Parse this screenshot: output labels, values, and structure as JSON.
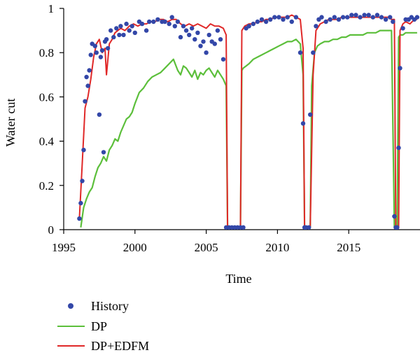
{
  "chart_data": {
    "type": "line",
    "title": "",
    "xlabel": "Time",
    "ylabel": "Water cut",
    "xlim": [
      1995,
      2020
    ],
    "ylim": [
      0,
      1
    ],
    "xticks": [
      1995,
      2000,
      2005,
      2010,
      2015
    ],
    "yticks": [
      0,
      0.2,
      0.4,
      0.6,
      0.8,
      1
    ],
    "ytick_labels": [
      "0",
      "0.2",
      "0.4",
      "0.6",
      "0.8",
      "1"
    ],
    "grid": false,
    "legend_position": "bottom-left, below plot",
    "series": [
      {
        "name": "History",
        "style": "markers",
        "color": "#3347a8",
        "x": [
          1996.1,
          1996.2,
          1996.3,
          1996.4,
          1996.5,
          1996.6,
          1996.7,
          1996.8,
          1996.9,
          1997.0,
          1997.2,
          1997.3,
          1997.5,
          1997.6,
          1997.7,
          1997.8,
          1997.9,
          1998.0,
          1998.1,
          1998.3,
          1998.5,
          1998.7,
          1998.9,
          1999.0,
          1999.2,
          1999.4,
          1999.6,
          1999.8,
          2000.0,
          2000.3,
          2000.5,
          2000.8,
          2001.0,
          2001.3,
          2001.6,
          2001.9,
          2002.1,
          2002.4,
          2002.6,
          2002.8,
          2003.0,
          2003.2,
          2003.4,
          2003.6,
          2003.8,
          2004.0,
          2004.2,
          2004.4,
          2004.6,
          2004.8,
          2005.0,
          2005.2,
          2005.4,
          2005.6,
          2005.8,
          2006.0,
          2006.2,
          2006.4,
          2006.6,
          2006.8,
          2007.0,
          2007.2,
          2007.4,
          2007.6,
          2007.8,
          2008.0,
          2008.3,
          2008.6,
          2008.9,
          2009.2,
          2009.5,
          2009.8,
          2010.1,
          2010.4,
          2010.7,
          2011.0,
          2011.3,
          2011.6,
          2011.8,
          2011.9,
          2012.0,
          2012.2,
          2012.3,
          2012.5,
          2012.7,
          2012.9,
          2013.1,
          2013.4,
          2013.7,
          2014.0,
          2014.3,
          2014.6,
          2014.9,
          2015.2,
          2015.5,
          2015.8,
          2016.1,
          2016.4,
          2016.7,
          2017.0,
          2017.3,
          2017.6,
          2017.9,
          2018.1,
          2018.2,
          2018.3,
          2018.4,
          2018.5,
          2018.6,
          2018.8,
          2019.0,
          2019.2,
          2019.4,
          2019.6,
          2019.8
        ],
        "y": [
          0.05,
          0.12,
          0.22,
          0.36,
          0.58,
          0.69,
          0.65,
          0.72,
          0.79,
          0.84,
          0.83,
          0.8,
          0.52,
          0.78,
          0.81,
          0.35,
          0.85,
          0.86,
          0.82,
          0.9,
          0.87,
          0.91,
          0.88,
          0.92,
          0.88,
          0.93,
          0.9,
          0.92,
          0.89,
          0.94,
          0.93,
          0.9,
          0.94,
          0.94,
          0.95,
          0.94,
          0.94,
          0.93,
          0.96,
          0.92,
          0.94,
          0.87,
          0.92,
          0.9,
          0.88,
          0.91,
          0.86,
          0.89,
          0.83,
          0.85,
          0.8,
          0.88,
          0.85,
          0.84,
          0.9,
          0.86,
          0.77,
          0.01,
          0.01,
          0.01,
          0.01,
          0.01,
          0.01,
          0.01,
          0.91,
          0.92,
          0.93,
          0.94,
          0.95,
          0.94,
          0.95,
          0.96,
          0.96,
          0.95,
          0.96,
          0.94,
          0.96,
          0.8,
          0.48,
          0.01,
          0.01,
          0.01,
          0.52,
          0.8,
          0.92,
          0.95,
          0.96,
          0.94,
          0.95,
          0.96,
          0.95,
          0.96,
          0.96,
          0.97,
          0.97,
          0.96,
          0.97,
          0.97,
          0.96,
          0.97,
          0.96,
          0.95,
          0.96,
          0.94,
          0.06,
          0.01,
          0.01,
          0.37,
          0.73,
          0.91,
          0.95,
          0.95,
          0.96,
          0.95,
          0.96
        ]
      },
      {
        "name": "DP",
        "style": "line",
        "color": "#5cbf3b",
        "x": [
          1996.2,
          1996.4,
          1996.6,
          1996.8,
          1997.0,
          1997.2,
          1997.4,
          1997.6,
          1997.8,
          1998.0,
          1998.2,
          1998.4,
          1998.6,
          1998.8,
          1999.0,
          1999.2,
          1999.4,
          1999.6,
          1999.8,
          2000.0,
          2000.3,
          2000.6,
          2000.9,
          2001.2,
          2001.5,
          2001.8,
          2002.1,
          2002.4,
          2002.7,
          2003.0,
          2003.2,
          2003.4,
          2003.6,
          2003.8,
          2004.0,
          2004.2,
          2004.4,
          2004.6,
          2004.8,
          2005.0,
          2005.2,
          2005.4,
          2005.6,
          2005.8,
          2006.0,
          2006.2,
          2006.4,
          2006.5,
          2006.6,
          2007.0,
          2007.4,
          2007.5,
          2007.6,
          2007.8,
          2008.0,
          2008.3,
          2008.6,
          2008.9,
          2009.2,
          2009.5,
          2009.8,
          2010.1,
          2010.4,
          2010.7,
          2011.0,
          2011.3,
          2011.6,
          2011.8,
          2011.9,
          2012.0,
          2012.2,
          2012.3,
          2012.4,
          2012.6,
          2012.8,
          2013.0,
          2013.3,
          2013.6,
          2013.9,
          2014.2,
          2014.5,
          2014.8,
          2015.1,
          2015.4,
          2015.7,
          2016.0,
          2016.3,
          2016.6,
          2016.9,
          2017.2,
          2017.5,
          2017.8,
          2018.0,
          2018.2,
          2018.3,
          2018.4,
          2018.5,
          2018.6,
          2018.8,
          2019.0,
          2019.3,
          2019.6,
          2019.8
        ],
        "y": [
          0.01,
          0.1,
          0.14,
          0.17,
          0.19,
          0.24,
          0.28,
          0.3,
          0.33,
          0.31,
          0.36,
          0.38,
          0.41,
          0.4,
          0.44,
          0.47,
          0.5,
          0.51,
          0.53,
          0.57,
          0.62,
          0.64,
          0.67,
          0.69,
          0.7,
          0.71,
          0.73,
          0.75,
          0.77,
          0.72,
          0.7,
          0.74,
          0.73,
          0.71,
          0.69,
          0.72,
          0.68,
          0.71,
          0.7,
          0.72,
          0.73,
          0.71,
          0.69,
          0.72,
          0.7,
          0.68,
          0.65,
          0.01,
          0.01,
          0.01,
          0.01,
          0.72,
          0.73,
          0.74,
          0.75,
          0.77,
          0.78,
          0.79,
          0.8,
          0.81,
          0.82,
          0.83,
          0.84,
          0.85,
          0.85,
          0.86,
          0.84,
          0.7,
          0.01,
          0.01,
          0.01,
          0.01,
          0.65,
          0.8,
          0.83,
          0.84,
          0.85,
          0.85,
          0.86,
          0.86,
          0.87,
          0.87,
          0.88,
          0.88,
          0.88,
          0.88,
          0.89,
          0.89,
          0.89,
          0.9,
          0.9,
          0.9,
          0.9,
          0.01,
          0.01,
          0.01,
          0.87,
          0.88,
          0.88,
          0.89,
          0.89,
          0.89,
          0.89
        ]
      },
      {
        "name": "DP+EDFM",
        "style": "line",
        "color": "#e02828",
        "x": [
          1996.1,
          1996.3,
          1996.5,
          1996.7,
          1996.9,
          1997.1,
          1997.3,
          1997.5,
          1997.7,
          1997.9,
          1998.0,
          1998.2,
          1998.4,
          1998.6,
          1998.8,
          1999.0,
          1999.3,
          1999.6,
          1999.9,
          2000.2,
          2000.5,
          2000.8,
          2001.1,
          2001.4,
          2001.7,
          2002.0,
          2002.3,
          2002.6,
          2002.9,
          2003.2,
          2003.5,
          2003.8,
          2004.1,
          2004.4,
          2004.7,
          2005.0,
          2005.3,
          2005.6,
          2005.9,
          2006.2,
          2006.4,
          2006.5,
          2006.6,
          2007.0,
          2007.4,
          2007.5,
          2007.7,
          2008.0,
          2008.3,
          2008.6,
          2008.9,
          2009.2,
          2009.5,
          2009.8,
          2010.1,
          2010.4,
          2010.7,
          2011.0,
          2011.3,
          2011.6,
          2011.8,
          2011.9,
          2012.0,
          2012.2,
          2012.3,
          2012.5,
          2012.7,
          2013.0,
          2013.3,
          2013.6,
          2013.9,
          2014.2,
          2014.5,
          2014.8,
          2015.1,
          2015.4,
          2015.7,
          2016.0,
          2016.3,
          2016.6,
          2016.9,
          2017.2,
          2017.5,
          2017.8,
          2018.0,
          2018.2,
          2018.3,
          2018.4,
          2018.5,
          2018.6,
          2018.8,
          2019.0,
          2019.3,
          2019.6,
          2019.8
        ],
        "y": [
          0.05,
          0.3,
          0.55,
          0.6,
          0.68,
          0.78,
          0.84,
          0.86,
          0.8,
          0.82,
          0.7,
          0.84,
          0.86,
          0.89,
          0.9,
          0.91,
          0.9,
          0.92,
          0.93,
          0.92,
          0.93,
          0.93,
          0.94,
          0.94,
          0.95,
          0.95,
          0.94,
          0.95,
          0.95,
          0.93,
          0.92,
          0.93,
          0.92,
          0.93,
          0.92,
          0.91,
          0.93,
          0.92,
          0.92,
          0.91,
          0.88,
          0.01,
          0.01,
          0.01,
          0.01,
          0.9,
          0.92,
          0.93,
          0.93,
          0.94,
          0.94,
          0.95,
          0.95,
          0.96,
          0.96,
          0.96,
          0.96,
          0.97,
          0.96,
          0.95,
          0.82,
          0.01,
          0.01,
          0.01,
          0.01,
          0.7,
          0.9,
          0.93,
          0.94,
          0.95,
          0.95,
          0.95,
          0.96,
          0.96,
          0.96,
          0.96,
          0.96,
          0.96,
          0.96,
          0.96,
          0.96,
          0.96,
          0.96,
          0.96,
          0.95,
          0.95,
          0.01,
          0.01,
          0.01,
          0.9,
          0.93,
          0.94,
          0.93,
          0.95,
          0.95
        ]
      }
    ]
  }
}
